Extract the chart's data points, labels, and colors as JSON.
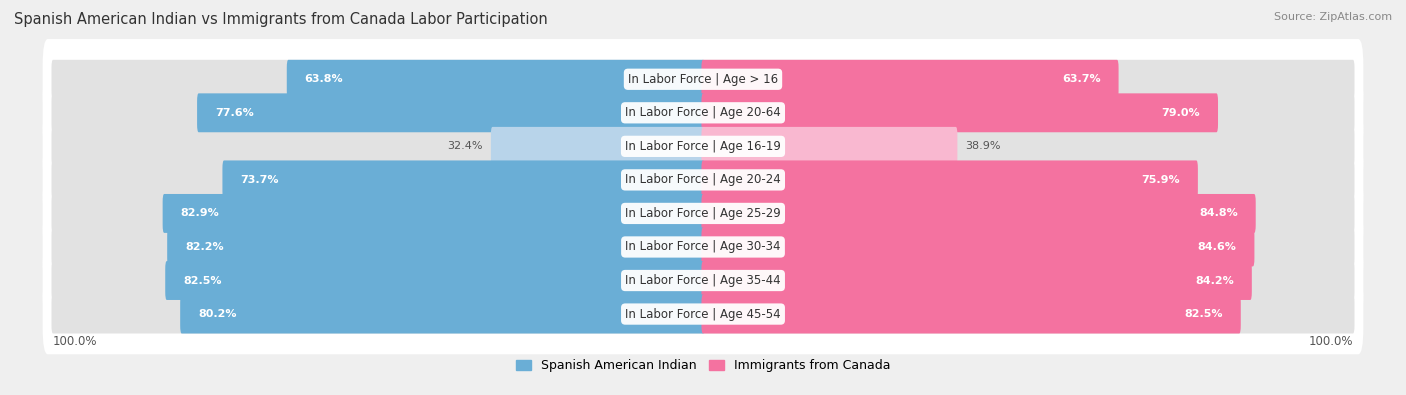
{
  "title": "Spanish American Indian vs Immigrants from Canada Labor Participation",
  "source": "Source: ZipAtlas.com",
  "categories": [
    "In Labor Force | Age > 16",
    "In Labor Force | Age 20-64",
    "In Labor Force | Age 16-19",
    "In Labor Force | Age 20-24",
    "In Labor Force | Age 25-29",
    "In Labor Force | Age 30-34",
    "In Labor Force | Age 35-44",
    "In Labor Force | Age 45-54"
  ],
  "left_values": [
    63.8,
    77.6,
    32.4,
    73.7,
    82.9,
    82.2,
    82.5,
    80.2
  ],
  "right_values": [
    63.7,
    79.0,
    38.9,
    75.9,
    84.8,
    84.6,
    84.2,
    82.5
  ],
  "left_color": "#6AAED6",
  "left_color_light": "#B8D4EA",
  "right_color": "#F472A0",
  "right_color_light": "#F9B8D0",
  "bar_height": 0.68,
  "max_val": 100.0,
  "legend_left": "Spanish American Indian",
  "legend_right": "Immigrants from Canada",
  "background_color": "#EFEFEF",
  "row_bg_color": "#E2E2E2",
  "title_color": "#333333",
  "source_color": "#888888",
  "label_fontsize": 8.5,
  "value_fontsize": 8.0,
  "axis_label_fontsize": 8.5
}
